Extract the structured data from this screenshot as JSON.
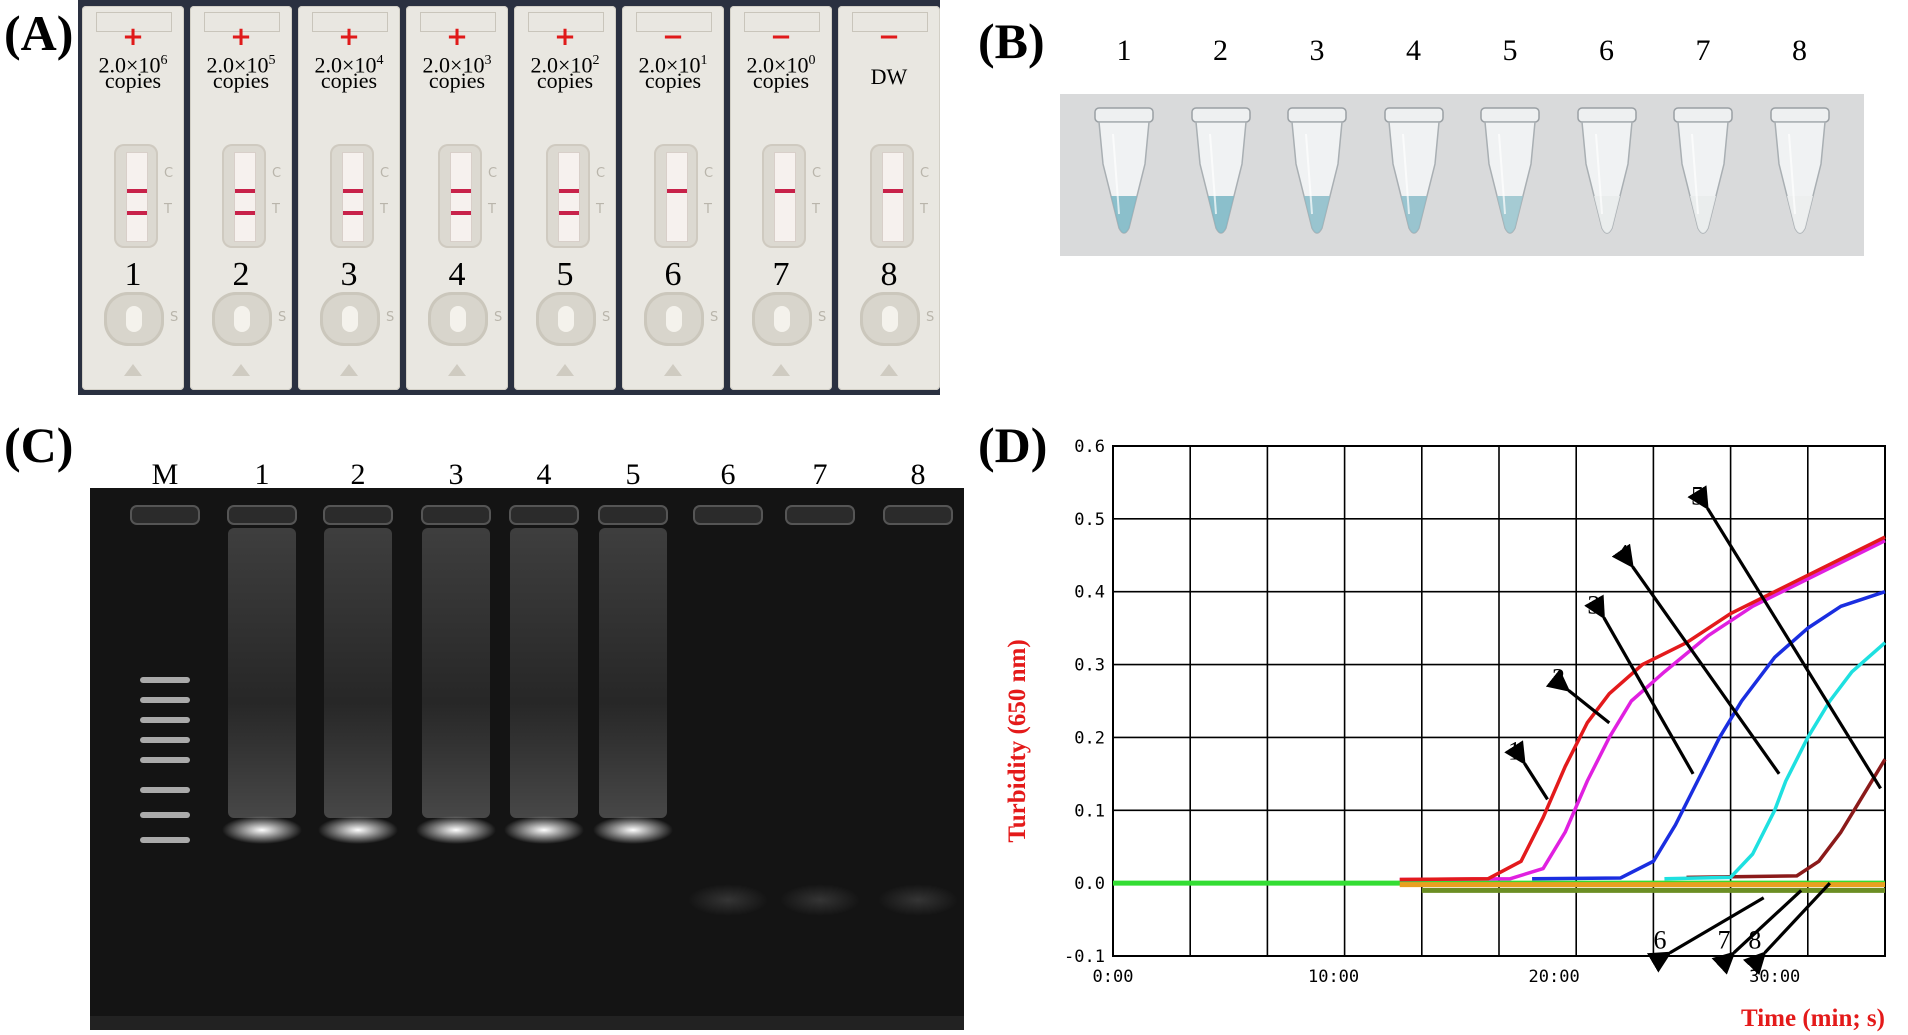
{
  "panels": {
    "a": "(A)",
    "b": "(B)",
    "c": "(C)",
    "d": "(D)"
  },
  "strips": [
    {
      "sign": "+",
      "conc_base": "2.0×10",
      "conc_exp": "6",
      "copies": "copies",
      "number": "1",
      "t_line": true
    },
    {
      "sign": "+",
      "conc_base": "2.0×10",
      "conc_exp": "5",
      "copies": "copies",
      "number": "2",
      "t_line": true
    },
    {
      "sign": "+",
      "conc_base": "2.0×10",
      "conc_exp": "4",
      "copies": "copies",
      "number": "3",
      "t_line": true
    },
    {
      "sign": "+",
      "conc_base": "2.0×10",
      "conc_exp": "3",
      "copies": "copies",
      "number": "4",
      "t_line": true
    },
    {
      "sign": "+",
      "conc_base": "2.0×10",
      "conc_exp": "2",
      "copies": "copies",
      "number": "5",
      "t_line": true
    },
    {
      "sign": "−",
      "conc_base": "2.0×10",
      "conc_exp": "1",
      "copies": "copies",
      "number": "6",
      "t_line": false
    },
    {
      "sign": "−",
      "conc_base": "2.0×10",
      "conc_exp": "0",
      "copies": "copies",
      "number": "7",
      "t_line": false
    },
    {
      "sign": "−",
      "conc_base": "DW",
      "conc_exp": "",
      "copies": "",
      "number": "8",
      "t_line": false
    }
  ],
  "strip_marks": {
    "c": "C",
    "t": "T",
    "s": "S"
  },
  "tubes": {
    "labels": [
      "1",
      "2",
      "3",
      "4",
      "5",
      "6",
      "7",
      "8"
    ],
    "colors": [
      "#7fb9c6",
      "#7fb9c6",
      "#8fbfcb",
      "#8fbfcb",
      "#9cc6cf",
      "#e9ecec",
      "#e9ecec",
      "#eceeee"
    ]
  },
  "gel": {
    "labels": [
      "M",
      "1",
      "2",
      "3",
      "4",
      "5",
      "6",
      "7",
      "8"
    ],
    "positive_lanes": [
      1,
      2,
      3,
      4,
      5
    ]
  },
  "chart_data": {
    "type": "line",
    "xlabel": "Time (min; s)",
    "ylabel": "Turbidity (650 nm)",
    "x_ticks": [
      "0:00",
      "10:00",
      "20:00",
      "30:00"
    ],
    "x_range": [
      0,
      35
    ],
    "y_ticks": [
      "-0.1",
      "0.0",
      "0.1",
      "0.2",
      "0.3",
      "0.4",
      "0.5",
      "0.6"
    ],
    "y_range": [
      -0.1,
      0.6
    ],
    "grid": true,
    "series": [
      {
        "name": "1",
        "color": "#e31a1c",
        "x": [
          13,
          17,
          18.5,
          19.5,
          20.5,
          21.5,
          22.5,
          24,
          26,
          28,
          30,
          32,
          34,
          35
        ],
        "y": [
          0.005,
          0.006,
          0.03,
          0.09,
          0.16,
          0.22,
          0.26,
          0.3,
          0.33,
          0.37,
          0.4,
          0.43,
          0.46,
          0.475
        ]
      },
      {
        "name": "2",
        "color": "#e020e0",
        "x": [
          13,
          18,
          19.5,
          20.5,
          21.5,
          22.5,
          23.5,
          25,
          27,
          29,
          31,
          33,
          35
        ],
        "y": [
          0.005,
          0.006,
          0.02,
          0.07,
          0.14,
          0.2,
          0.25,
          0.29,
          0.34,
          0.38,
          0.41,
          0.44,
          0.47
        ]
      },
      {
        "name": "3",
        "color": "#1a2ee0",
        "x": [
          19,
          23,
          24.5,
          25.5,
          26.5,
          27.5,
          28.5,
          30,
          31.5,
          33,
          35
        ],
        "y": [
          0.006,
          0.007,
          0.03,
          0.08,
          0.14,
          0.2,
          0.25,
          0.31,
          0.35,
          0.38,
          0.4
        ]
      },
      {
        "name": "4",
        "color": "#1ee0e0",
        "x": [
          25,
          28,
          29,
          30,
          30.5,
          31.5,
          32.5,
          33.5,
          35
        ],
        "y": [
          0.006,
          0.008,
          0.04,
          0.1,
          0.14,
          0.2,
          0.25,
          0.29,
          0.33
        ]
      },
      {
        "name": "5",
        "color": "#8b1a1a",
        "x": [
          26,
          31,
          32,
          33,
          34,
          35
        ],
        "y": [
          0.008,
          0.01,
          0.03,
          0.07,
          0.12,
          0.17
        ]
      },
      {
        "name": "6",
        "color": "#e8a020",
        "x": [
          13,
          35
        ],
        "y": [
          -0.002,
          -0.002
        ]
      },
      {
        "name": "7",
        "color": "#6b8e23",
        "x": [
          14,
          35
        ],
        "y": [
          -0.01,
          -0.01
        ]
      },
      {
        "name": "8",
        "color": "#33dd33",
        "x": [
          0,
          35
        ],
        "y": [
          0.0,
          0.0
        ]
      }
    ],
    "curve_labels": [
      {
        "text": "1",
        "at": [
          18.2,
          0.17
        ],
        "arrow_to": [
          19.7,
          0.115
        ]
      },
      {
        "text": "2",
        "at": [
          20.2,
          0.27
        ],
        "arrow_to": [
          22.5,
          0.22
        ]
      },
      {
        "text": "3",
        "at": [
          21.8,
          0.37
        ],
        "arrow_to": [
          26.3,
          0.15
        ]
      },
      {
        "text": "4",
        "at": [
          23.1,
          0.44
        ],
        "arrow_to": [
          30.2,
          0.15
        ]
      },
      {
        "text": "5",
        "at": [
          26.5,
          0.52
        ],
        "arrow_to": [
          34.8,
          0.13
        ]
      },
      {
        "text": "6",
        "at": [
          24.8,
          -0.09
        ],
        "arrow_to": [
          29.5,
          -0.02
        ]
      },
      {
        "text": "7",
        "at": [
          27.7,
          -0.09
        ],
        "arrow_to": [
          31.2,
          -0.01
        ]
      },
      {
        "text": "8",
        "at": [
          29.1,
          -0.09
        ],
        "arrow_to": [
          32.5,
          0.0
        ]
      }
    ]
  }
}
